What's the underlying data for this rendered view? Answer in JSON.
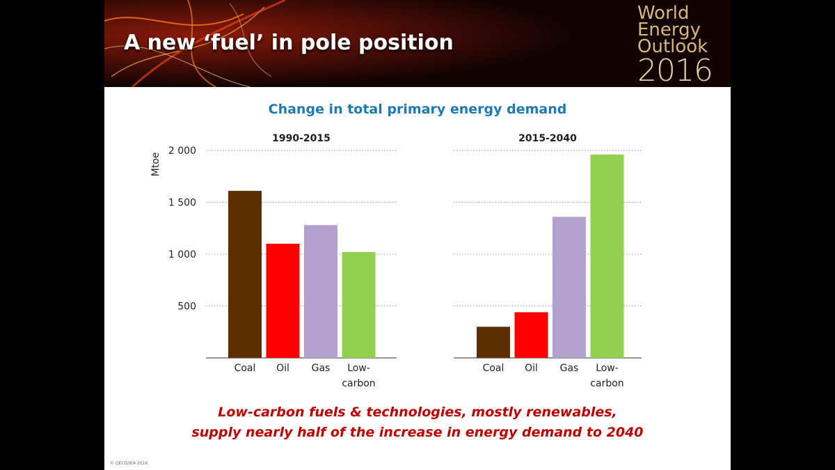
{
  "slide": {
    "title": "A new ‘fuel’ in pole position",
    "logo": {
      "line1": "World",
      "line2": "Energy",
      "line3": "Outlook",
      "year": "2016"
    },
    "caption": {
      "line1": "Low-carbon fuels & technologies, mostly renewables,",
      "line2": "supply nearly half of the increase in energy demand to 2040"
    },
    "copyright": "© OECD/IEA 2016"
  },
  "colors": {
    "coal": "#5c2e00",
    "oil": "#ff0000",
    "gas": "#b3a0cc",
    "low_carbon": "#92d050",
    "title_blue": "#1d7ab5",
    "caption_red": "#c00000"
  },
  "chart_data": {
    "type": "bar",
    "title": "Change in total primary energy demand",
    "ylabel": "Mtoe",
    "ylim": [
      0,
      2000
    ],
    "yticks": [
      500,
      1000,
      1500,
      2000
    ],
    "ytick_labels": [
      "500",
      "1 000",
      "1 500",
      "2 000"
    ],
    "grid": true,
    "categories": [
      {
        "key": "coal",
        "lines": [
          "Coal"
        ]
      },
      {
        "key": "oil",
        "lines": [
          "Oil"
        ]
      },
      {
        "key": "gas",
        "lines": [
          "Gas"
        ]
      },
      {
        "key": "low_carbon",
        "lines": [
          "Low-",
          "carbon"
        ]
      }
    ],
    "panels": [
      {
        "name": "1990-2015",
        "values": [
          1610,
          1100,
          1280,
          1020
        ]
      },
      {
        "name": "2015-2040",
        "values": [
          300,
          440,
          1360,
          1960
        ]
      }
    ]
  }
}
